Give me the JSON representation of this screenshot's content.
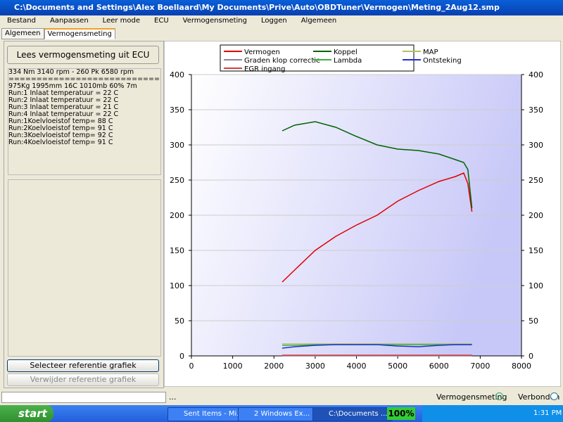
{
  "window": {
    "title": "C:\\Documents and Settings\\Alex Boellaard\\My Documents\\Prive\\Auto\\OBDTuner\\Vermogen\\Meting_2Aug12.smp"
  },
  "menu": [
    "Bestand",
    "Aanpassen",
    "Leer mode",
    "ECU",
    "Vermogensmeting",
    "Loggen",
    "Algemeen"
  ],
  "tabs": [
    "Algemeen",
    "Vermogensmeting"
  ],
  "left": {
    "read_button": "Lees vermogensmeting uit ECU",
    "info_lines": [
      "334 Nm 3140 rpm - 260 Pk 6580 rpm",
      "================================",
      "975Kg 1995mm 16C 1010mb 60% 7m",
      "Run:1 Inlaat temperatuur = 22 C",
      "Run:2 Inlaat temperatuur = 22 C",
      "Run:3 Inlaat temperatuur = 21 C",
      "Run:4 Inlaat temperatuur = 22 C",
      "Run:1Koelvloeistof temp= 88 C",
      "Run:2Koelvloeistof temp= 91 C",
      "Run:3Koelvloeistof temp= 92 C",
      "Run:4Koelvloeistof temp= 91 C"
    ],
    "select_button": "Selecteer referentie grafiek",
    "remove_button": "Verwijder referentie grafiek"
  },
  "chart_data": {
    "type": "line",
    "x": [
      2200,
      2500,
      3000,
      3500,
      4000,
      4500,
      5000,
      5500,
      6000,
      6400,
      6600,
      6700,
      6800
    ],
    "series": [
      {
        "name": "Vermogen",
        "color": "#e00000",
        "values": [
          105,
          122,
          150,
          170,
          186,
          200,
          220,
          235,
          248,
          255,
          260,
          245,
          205
        ]
      },
      {
        "name": "Koppel",
        "color": "#006400",
        "values": [
          320,
          328,
          333,
          325,
          312,
          300,
          294,
          292,
          287,
          279,
          275,
          265,
          210
        ]
      },
      {
        "name": "MAP",
        "color": "#b0c060",
        "values": [
          17,
          17,
          17,
          17,
          17,
          17,
          17,
          17,
          17,
          17,
          17,
          17,
          17
        ]
      },
      {
        "name": "Graden klop correctie",
        "color": "#9080a0",
        "values": [
          0,
          0,
          0,
          0,
          0,
          0,
          0,
          0,
          0,
          0,
          0,
          0,
          0
        ]
      },
      {
        "name": "Lambda",
        "color": "#40b040",
        "values": [
          15,
          15,
          16,
          16,
          16,
          16,
          16,
          16,
          16,
          16,
          16,
          16,
          16
        ]
      },
      {
        "name": "Ontsteking",
        "color": "#2030d0",
        "values": [
          11,
          13,
          15,
          16,
          16,
          16,
          14,
          13,
          15,
          16,
          16,
          16,
          16
        ]
      },
      {
        "name": "EGR ingang",
        "color": "#d04040",
        "values": [
          1,
          1,
          1,
          1,
          1,
          1,
          1,
          1,
          1,
          1,
          1,
          1,
          1
        ]
      }
    ],
    "xlim": [
      0,
      8000
    ],
    "xticks": [
      0,
      1000,
      2000,
      3000,
      4000,
      5000,
      6000,
      7000,
      8000
    ],
    "ylim": [
      0,
      400
    ],
    "yticks": [
      0,
      50,
      100,
      150,
      200,
      250,
      300,
      350,
      400
    ],
    "y2lim": [
      0,
      400
    ],
    "y2ticks": [
      0,
      50,
      100,
      150,
      200,
      250,
      300,
      350,
      400
    ],
    "grid": true
  },
  "status": {
    "left": "...",
    "mode": "Vermogensmeting",
    "connected": "Verbonden"
  },
  "taskbar": {
    "start": "start",
    "items": [
      "Sent Items - Mi...",
      "2 Windows Ex...",
      "C:\\Documents ..."
    ],
    "zoom": "100%",
    "clock": "1:31 PM"
  }
}
